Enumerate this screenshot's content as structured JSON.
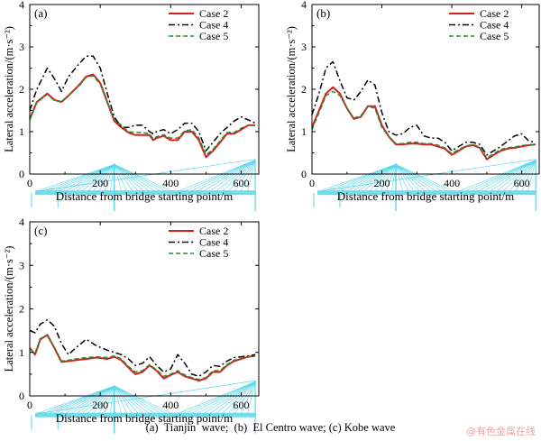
{
  "caption": "(a)  Tianjin  wave;  (b)  El Centro wave; (c) Kobe wave",
  "watermark": "@有色金属在线",
  "colors": {
    "case2": "#d62020",
    "case4": "#000000",
    "case5": "#2b8a2b",
    "bridge": "#59d6ea"
  },
  "chart_data": [
    {
      "type": "line",
      "panel_label": "(a)",
      "xlabel": "Distance from bridge starting point/m",
      "ylabel": "Lateral acceleration/(m·s⁻²)",
      "xlim": [
        0,
        650
      ],
      "ylim": [
        0,
        4
      ],
      "xticks": [
        "0",
        "200",
        "400",
        "600"
      ],
      "yticks": [
        "0",
        "1",
        "2",
        "3",
        "4"
      ],
      "legend_position": "top-right",
      "bridge_schematic": true,
      "series": [
        {
          "name": "Case 2",
          "style": "solid",
          "color": "#d62020",
          "x": [
            0,
            20,
            50,
            70,
            90,
            110,
            140,
            160,
            180,
            200,
            220,
            240,
            260,
            280,
            300,
            320,
            340,
            350,
            360,
            380,
            400,
            420,
            440,
            460,
            480,
            500,
            520,
            540,
            560,
            580,
            600,
            620,
            640
          ],
          "y": [
            1.3,
            1.7,
            1.9,
            1.75,
            1.7,
            1.85,
            2.1,
            2.3,
            2.35,
            2.15,
            1.7,
            1.25,
            1.1,
            0.98,
            0.92,
            0.92,
            0.92,
            0.8,
            0.85,
            0.9,
            0.8,
            0.8,
            1.0,
            1.0,
            0.8,
            0.4,
            0.55,
            0.75,
            0.95,
            0.95,
            1.05,
            1.15,
            1.15
          ]
        },
        {
          "name": "Case 4",
          "style": "dashdot",
          "color": "#000000",
          "x": [
            0,
            20,
            50,
            70,
            90,
            110,
            140,
            160,
            180,
            200,
            220,
            240,
            260,
            280,
            300,
            320,
            340,
            350,
            360,
            380,
            400,
            420,
            440,
            460,
            480,
            500,
            520,
            540,
            560,
            580,
            600,
            620,
            640
          ],
          "y": [
            1.5,
            2.0,
            2.5,
            2.25,
            1.95,
            2.3,
            2.6,
            2.78,
            2.78,
            2.5,
            1.9,
            1.35,
            1.1,
            1.1,
            1.15,
            1.15,
            1.0,
            0.95,
            1.0,
            1.05,
            0.95,
            1.05,
            1.2,
            1.2,
            1.0,
            0.55,
            0.75,
            0.95,
            1.1,
            1.25,
            1.35,
            1.28,
            1.2
          ]
        },
        {
          "name": "Case 5",
          "style": "dashed",
          "color": "#2b8a2b",
          "x": [
            0,
            20,
            50,
            70,
            90,
            110,
            140,
            160,
            180,
            200,
            220,
            240,
            260,
            280,
            300,
            320,
            340,
            350,
            360,
            380,
            400,
            420,
            440,
            460,
            480,
            500,
            520,
            540,
            560,
            580,
            600,
            620,
            640
          ],
          "y": [
            1.28,
            1.68,
            1.88,
            1.73,
            1.72,
            1.85,
            2.08,
            2.28,
            2.32,
            2.12,
            1.68,
            1.28,
            1.15,
            1.0,
            0.98,
            0.98,
            0.95,
            0.83,
            0.88,
            0.93,
            0.85,
            0.85,
            1.02,
            1.05,
            0.85,
            0.45,
            0.58,
            0.78,
            0.98,
            0.98,
            1.08,
            1.15,
            1.15
          ]
        }
      ]
    },
    {
      "type": "line",
      "panel_label": "(b)",
      "xlabel": "Distance from bridge starting point/m",
      "ylabel": "Lateral acceleration/(m·s⁻²)",
      "xlim": [
        0,
        650
      ],
      "ylim": [
        0,
        4
      ],
      "xticks": [
        "0",
        "200",
        "400",
        "600"
      ],
      "yticks": [
        "0",
        "1",
        "2",
        "3",
        "4"
      ],
      "legend_position": "top-right",
      "bridge_schematic": true,
      "series": [
        {
          "name": "Case 2",
          "style": "solid",
          "color": "#d62020",
          "x": [
            0,
            20,
            40,
            60,
            80,
            100,
            120,
            140,
            160,
            180,
            200,
            220,
            240,
            260,
            280,
            300,
            320,
            340,
            360,
            380,
            400,
            420,
            440,
            460,
            480,
            500,
            520,
            540,
            560,
            580,
            600,
            620,
            640
          ],
          "y": [
            1.1,
            1.5,
            1.9,
            2.05,
            1.9,
            1.55,
            1.3,
            1.35,
            1.6,
            1.6,
            1.15,
            0.88,
            0.7,
            0.7,
            0.72,
            0.72,
            0.7,
            0.7,
            0.65,
            0.6,
            0.45,
            0.55,
            0.65,
            0.68,
            0.62,
            0.35,
            0.45,
            0.55,
            0.6,
            0.62,
            0.65,
            0.68,
            0.7
          ]
        },
        {
          "name": "Case 4",
          "style": "dashdot",
          "color": "#000000",
          "x": [
            0,
            20,
            40,
            60,
            80,
            100,
            120,
            140,
            160,
            180,
            200,
            220,
            240,
            260,
            280,
            300,
            320,
            340,
            360,
            380,
            400,
            420,
            440,
            460,
            480,
            500,
            520,
            540,
            560,
            580,
            600,
            620,
            640
          ],
          "y": [
            1.4,
            1.9,
            2.5,
            2.65,
            2.2,
            1.8,
            1.75,
            1.95,
            2.22,
            2.1,
            1.45,
            1.0,
            0.92,
            0.95,
            1.1,
            1.15,
            0.9,
            0.85,
            0.85,
            0.75,
            0.55,
            0.65,
            0.75,
            0.75,
            0.7,
            0.45,
            0.55,
            0.65,
            0.78,
            0.9,
            0.95,
            0.78,
            0.75
          ]
        },
        {
          "name": "Case 5",
          "style": "dashed",
          "color": "#2b8a2b",
          "x": [
            0,
            20,
            40,
            60,
            80,
            100,
            120,
            140,
            160,
            180,
            200,
            220,
            240,
            260,
            280,
            300,
            320,
            340,
            360,
            380,
            400,
            420,
            440,
            460,
            480,
            500,
            520,
            540,
            560,
            580,
            600,
            620,
            640
          ],
          "y": [
            1.05,
            1.45,
            1.85,
            1.95,
            1.85,
            1.55,
            1.32,
            1.38,
            1.6,
            1.55,
            1.1,
            0.88,
            0.72,
            0.72,
            0.75,
            0.75,
            0.72,
            0.72,
            0.68,
            0.62,
            0.48,
            0.58,
            0.66,
            0.7,
            0.64,
            0.38,
            0.48,
            0.58,
            0.62,
            0.64,
            0.67,
            0.69,
            0.7
          ]
        }
      ]
    },
    {
      "type": "line",
      "panel_label": "(c)",
      "xlabel": "Distance from bridge starting point/m",
      "ylabel": "Lateral acceleration/(m·s⁻²)",
      "xlim": [
        0,
        650
      ],
      "ylim": [
        0,
        4
      ],
      "xticks": [
        "0",
        "200",
        "400",
        "600"
      ],
      "yticks": [
        "0",
        "1",
        "2",
        "3",
        "4"
      ],
      "legend_position": "top-right",
      "bridge_schematic": true,
      "series": [
        {
          "name": "Case 2",
          "style": "solid",
          "color": "#d62020",
          "x": [
            0,
            15,
            30,
            50,
            70,
            90,
            110,
            130,
            160,
            190,
            220,
            240,
            260,
            280,
            300,
            320,
            340,
            360,
            380,
            400,
            420,
            440,
            460,
            480,
            500,
            520,
            540,
            560,
            580,
            600,
            620,
            640
          ],
          "y": [
            1.1,
            0.95,
            1.3,
            1.4,
            1.1,
            0.78,
            0.8,
            0.82,
            0.85,
            0.88,
            0.85,
            0.9,
            0.82,
            0.65,
            0.5,
            0.55,
            0.7,
            0.58,
            0.4,
            0.48,
            0.55,
            0.45,
            0.4,
            0.35,
            0.4,
            0.55,
            0.55,
            0.7,
            0.8,
            0.85,
            0.9,
            0.92
          ]
        },
        {
          "name": "Case 4",
          "style": "dashdot",
          "color": "#000000",
          "x": [
            0,
            15,
            30,
            50,
            70,
            90,
            110,
            130,
            160,
            190,
            220,
            240,
            260,
            280,
            300,
            320,
            340,
            360,
            380,
            400,
            420,
            440,
            460,
            480,
            500,
            520,
            540,
            560,
            580,
            600,
            620,
            640
          ],
          "y": [
            1.5,
            1.45,
            1.65,
            1.75,
            1.6,
            1.2,
            0.95,
            1.1,
            1.3,
            1.15,
            1.05,
            1.0,
            0.95,
            0.85,
            0.7,
            0.75,
            0.9,
            0.7,
            0.55,
            0.62,
            0.95,
            0.75,
            0.5,
            0.45,
            0.55,
            0.7,
            0.68,
            0.8,
            0.88,
            0.9,
            0.92,
            0.95
          ]
        },
        {
          "name": "Case 5",
          "style": "dashed",
          "color": "#2b8a2b",
          "x": [
            0,
            15,
            30,
            50,
            70,
            90,
            110,
            130,
            160,
            190,
            220,
            240,
            260,
            280,
            300,
            320,
            340,
            360,
            380,
            400,
            420,
            440,
            460,
            480,
            500,
            520,
            540,
            560,
            580,
            600,
            620,
            640
          ],
          "y": [
            1.08,
            0.98,
            1.32,
            1.38,
            1.12,
            0.8,
            0.82,
            0.85,
            0.88,
            0.9,
            0.88,
            0.92,
            0.85,
            0.68,
            0.55,
            0.58,
            0.72,
            0.6,
            0.45,
            0.5,
            0.58,
            0.48,
            0.42,
            0.38,
            0.42,
            0.58,
            0.58,
            0.72,
            0.82,
            0.86,
            0.9,
            0.92
          ]
        }
      ]
    }
  ]
}
